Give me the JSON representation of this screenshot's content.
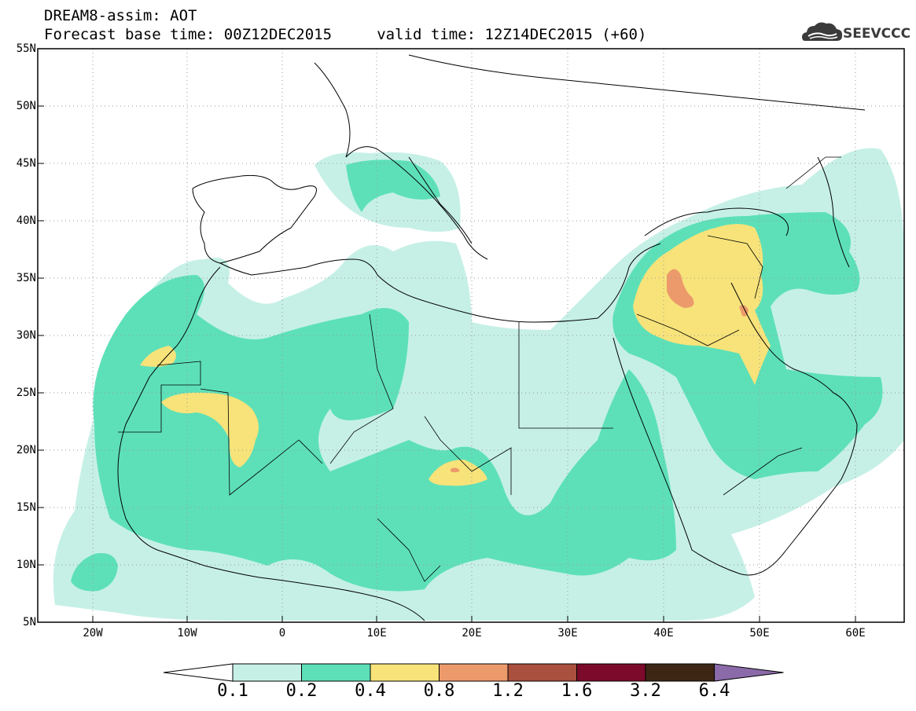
{
  "header": {
    "line1": "DREAM8-assim: AOT",
    "line2": "Forecast base time: 00Z12DEC2015     valid time: 12Z14DEC2015 (+60)"
  },
  "logo": {
    "text": "SEEVCCC",
    "icon": "cloud-icon"
  },
  "map": {
    "lon_range": [
      -25,
      65
    ],
    "lat_range": [
      5,
      55
    ],
    "lat_ticks": [
      "5N",
      "10N",
      "15N",
      "20N",
      "25N",
      "30N",
      "35N",
      "40N",
      "45N",
      "50N",
      "55N"
    ],
    "lon_ticks": [
      "20W",
      "10W",
      "0",
      "10E",
      "20E",
      "30E",
      "40E",
      "50E",
      "60E"
    ],
    "grid": "dotted"
  },
  "legend": {
    "labels": [
      "0.1",
      "0.2",
      "0.4",
      "0.8",
      "1.2",
      "1.6",
      "3.2",
      "6.4"
    ],
    "colors": [
      "#ffffff",
      "#c6f0e6",
      "#5de0b8",
      "#f7e37a",
      "#ec9a6b",
      "#a9503e",
      "#7c0a2a",
      "#3d2714",
      "#8a6aa8"
    ]
  }
}
